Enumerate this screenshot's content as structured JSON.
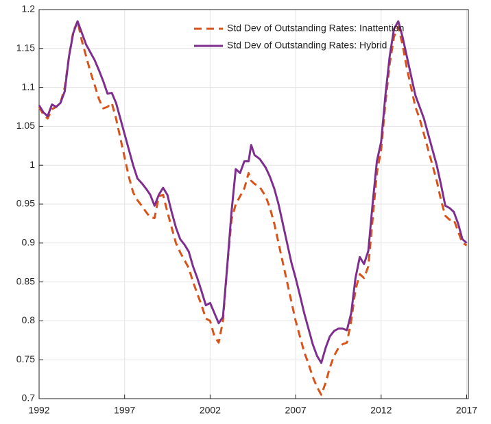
{
  "chart_data": {
    "type": "line",
    "x": [
      1992,
      1992.25,
      1992.5,
      1992.75,
      1993,
      1993.25,
      1993.5,
      1993.75,
      1994,
      1994.25,
      1994.5,
      1994.75,
      1995,
      1995.25,
      1995.5,
      1995.75,
      1996,
      1996.25,
      1996.5,
      1996.75,
      1997,
      1997.25,
      1997.5,
      1997.75,
      1998,
      1998.25,
      1998.5,
      1998.75,
      1999,
      1999.25,
      1999.5,
      1999.75,
      2000,
      2000.25,
      2000.5,
      2000.75,
      2001,
      2001.25,
      2001.5,
      2001.75,
      2002,
      2002.25,
      2002.5,
      2002.75,
      2003,
      2003.25,
      2003.5,
      2003.75,
      2004,
      2004.25,
      2004.4,
      2004.6,
      2004.9,
      2005.25,
      2005.5,
      2005.75,
      2006,
      2006.25,
      2006.5,
      2006.75,
      2007,
      2007.25,
      2007.5,
      2007.75,
      2008,
      2008.25,
      2008.5,
      2008.75,
      2009,
      2009.25,
      2009.5,
      2009.75,
      2010,
      2010.25,
      2010.5,
      2010.75,
      2011,
      2011.25,
      2011.5,
      2011.75,
      2012,
      2012.25,
      2012.5,
      2012.75,
      2013,
      2013.25,
      2013.5,
      2013.75,
      2014,
      2014.25,
      2014.5,
      2014.75,
      2015,
      2015.25,
      2015.5,
      2015.75,
      2016,
      2016.25,
      2016.5,
      2016.75,
      2017
    ],
    "series": [
      {
        "name": "Std Dev of Outstanding Rates: Inattention",
        "color": "#d95319",
        "dashed": true,
        "values": [
          1.075,
          1.065,
          1.06,
          1.072,
          1.075,
          1.08,
          1.1,
          1.14,
          1.172,
          1.185,
          1.16,
          1.14,
          1.12,
          1.103,
          1.085,
          1.073,
          1.075,
          1.08,
          1.06,
          1.035,
          1.01,
          0.985,
          0.965,
          0.955,
          0.948,
          0.94,
          0.933,
          0.932,
          0.96,
          0.962,
          0.94,
          0.92,
          0.9,
          0.888,
          0.878,
          0.868,
          0.85,
          0.835,
          0.82,
          0.803,
          0.8,
          0.78,
          0.772,
          0.8,
          0.87,
          0.93,
          0.95,
          0.96,
          0.97,
          0.99,
          0.98,
          0.976,
          0.972,
          0.96,
          0.945,
          0.925,
          0.9,
          0.875,
          0.85,
          0.825,
          0.8,
          0.78,
          0.76,
          0.745,
          0.728,
          0.715,
          0.705,
          0.72,
          0.74,
          0.755,
          0.765,
          0.77,
          0.772,
          0.8,
          0.84,
          0.86,
          0.855,
          0.87,
          0.93,
          0.99,
          1.02,
          1.08,
          1.13,
          1.165,
          1.178,
          1.155,
          1.125,
          1.1,
          1.075,
          1.06,
          1.04,
          1.02,
          1.0,
          0.98,
          0.955,
          0.935,
          0.93,
          0.93,
          0.915,
          0.9,
          0.897
        ]
      },
      {
        "name": "Std Dev of Outstanding Rates: Hybrid",
        "color": "#7e2f8e",
        "dashed": false,
        "values": [
          1.077,
          1.068,
          1.063,
          1.078,
          1.075,
          1.08,
          1.095,
          1.14,
          1.17,
          1.185,
          1.17,
          1.155,
          1.145,
          1.135,
          1.122,
          1.108,
          1.092,
          1.093,
          1.08,
          1.06,
          1.04,
          1.02,
          1.0,
          0.983,
          0.977,
          0.97,
          0.962,
          0.948,
          0.962,
          0.971,
          0.962,
          0.94,
          0.92,
          0.905,
          0.898,
          0.889,
          0.87,
          0.855,
          0.838,
          0.82,
          0.823,
          0.81,
          0.797,
          0.805,
          0.87,
          0.94,
          0.995,
          0.99,
          1.005,
          1.005,
          1.026,
          1.013,
          1.008,
          0.997,
          0.985,
          0.97,
          0.95,
          0.925,
          0.9,
          0.875,
          0.855,
          0.833,
          0.81,
          0.79,
          0.77,
          0.755,
          0.746,
          0.765,
          0.78,
          0.787,
          0.79,
          0.79,
          0.788,
          0.81,
          0.855,
          0.882,
          0.873,
          0.89,
          0.95,
          1.005,
          1.03,
          1.09,
          1.14,
          1.175,
          1.185,
          1.165,
          1.14,
          1.115,
          1.09,
          1.075,
          1.06,
          1.04,
          1.02,
          1.0,
          0.975,
          0.948,
          0.945,
          0.94,
          0.925,
          0.905,
          0.9
        ]
      }
    ],
    "xlim": [
      1992,
      2017.1
    ],
    "xticks": [
      1992,
      1997,
      2002,
      2007,
      2012,
      2017
    ],
    "ylim": [
      0.7,
      1.2
    ],
    "yticks": [
      0.7,
      0.75,
      0.8,
      0.85,
      0.9,
      0.95,
      1,
      1.05,
      1.1,
      1.15,
      1.2
    ],
    "grid": true,
    "legend": "northeast"
  }
}
